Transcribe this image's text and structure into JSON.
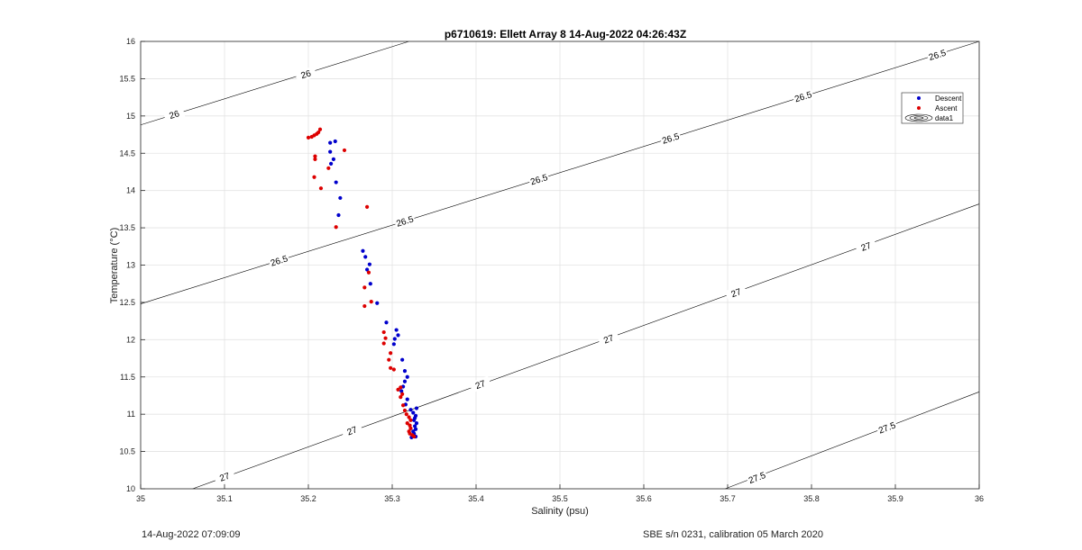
{
  "chart_data": {
    "type": "scatter",
    "title": "p6710619: Ellett Array 8 14-Aug-2022 04:26:43Z",
    "xlabel": "Salinity (psu)",
    "ylabel": "Temperature (°C)",
    "xlim": [
      35,
      36
    ],
    "ylim": [
      10,
      16
    ],
    "xticks": [
      "35",
      "35.1",
      "35.2",
      "35.3",
      "35.4",
      "35.5",
      "35.6",
      "35.7",
      "35.8",
      "35.9",
      "36"
    ],
    "yticks": [
      "10",
      "10.5",
      "11",
      "11.5",
      "12",
      "12.5",
      "13",
      "13.5",
      "14",
      "14.5",
      "15",
      "15.5",
      "16"
    ],
    "grid": true,
    "legend_position": "top-right",
    "legend": [
      "Descent",
      "Ascent",
      "data1"
    ],
    "colors": {
      "descent": "#0000cc",
      "ascent": "#dd0000",
      "contour": "#000000",
      "grid": "#e3e3e3"
    },
    "series": [
      {
        "name": "Descent",
        "points": [
          [
            35.226,
            14.64
          ],
          [
            35.232,
            14.66
          ],
          [
            35.226,
            14.52
          ],
          [
            35.23,
            14.42
          ],
          [
            35.227,
            14.36
          ],
          [
            35.233,
            14.11
          ],
          [
            35.238,
            13.9
          ],
          [
            35.236,
            13.67
          ],
          [
            35.265,
            13.19
          ],
          [
            35.268,
            13.11
          ],
          [
            35.273,
            13.01
          ],
          [
            35.27,
            12.94
          ],
          [
            35.274,
            12.75
          ],
          [
            35.282,
            12.49
          ],
          [
            35.293,
            12.23
          ],
          [
            35.305,
            12.13
          ],
          [
            35.307,
            12.06
          ],
          [
            35.303,
            12.01
          ],
          [
            35.302,
            11.94
          ],
          [
            35.312,
            11.73
          ],
          [
            35.315,
            11.58
          ],
          [
            35.318,
            11.5
          ],
          [
            35.315,
            11.44
          ],
          [
            35.313,
            11.37
          ],
          [
            35.311,
            11.31
          ],
          [
            35.318,
            11.2
          ],
          [
            35.316,
            11.13
          ],
          [
            35.322,
            11.06
          ],
          [
            35.329,
            11.08
          ],
          [
            35.325,
            11.02
          ],
          [
            35.328,
            10.98
          ],
          [
            35.326,
            10.92
          ],
          [
            35.329,
            10.88
          ],
          [
            35.327,
            10.84
          ],
          [
            35.328,
            10.8
          ],
          [
            35.326,
            10.74
          ],
          [
            35.328,
            10.7
          ],
          [
            35.323,
            10.69
          ],
          [
            35.325,
            10.77
          ],
          [
            35.327,
            10.95
          ]
        ]
      },
      {
        "name": "Ascent",
        "points": [
          [
            35.214,
            14.82
          ],
          [
            35.212,
            14.78
          ],
          [
            35.21,
            14.76
          ],
          [
            35.207,
            14.74
          ],
          [
            35.204,
            14.72
          ],
          [
            35.2,
            14.71
          ],
          [
            35.243,
            14.54
          ],
          [
            35.208,
            14.46
          ],
          [
            35.208,
            14.42
          ],
          [
            35.224,
            14.3
          ],
          [
            35.207,
            14.18
          ],
          [
            35.215,
            14.03
          ],
          [
            35.27,
            13.78
          ],
          [
            35.233,
            13.51
          ],
          [
            35.272,
            12.9
          ],
          [
            35.267,
            12.7
          ],
          [
            35.275,
            12.51
          ],
          [
            35.267,
            12.45
          ],
          [
            35.29,
            12.1
          ],
          [
            35.292,
            12.02
          ],
          [
            35.29,
            11.95
          ],
          [
            35.298,
            11.82
          ],
          [
            35.296,
            11.73
          ],
          [
            35.298,
            11.62
          ],
          [
            35.302,
            11.6
          ],
          [
            35.31,
            11.36
          ],
          [
            35.307,
            11.33
          ],
          [
            35.312,
            11.27
          ],
          [
            35.31,
            11.23
          ],
          [
            35.313,
            11.12
          ],
          [
            35.315,
            11.05
          ],
          [
            35.317,
            11.0
          ],
          [
            35.32,
            10.96
          ],
          [
            35.322,
            10.92
          ],
          [
            35.318,
            10.88
          ],
          [
            35.321,
            10.85
          ],
          [
            35.322,
            10.81
          ],
          [
            35.32,
            10.77
          ],
          [
            35.321,
            10.74
          ],
          [
            35.324,
            10.72
          ],
          [
            35.326,
            10.7
          ]
        ]
      }
    ],
    "contours": [
      {
        "level": "26",
        "from": [
          35.0,
          14.88
        ],
        "to": [
          35.32,
          16.0
        ],
        "labels": [
          [
            35.04,
            15.02
          ],
          [
            35.197,
            15.56
          ]
        ]
      },
      {
        "level": "26.5",
        "from": [
          35.0,
          12.48
        ],
        "to": [
          36.0,
          16.0
        ],
        "labels": [
          [
            35.165,
            13.06
          ],
          [
            35.315,
            13.59
          ],
          [
            35.475,
            14.15
          ],
          [
            35.632,
            14.7
          ],
          [
            35.79,
            15.26
          ],
          [
            35.95,
            15.82
          ]
        ]
      },
      {
        "level": "27",
        "from": [
          35.062,
          10.0
        ],
        "to": [
          36.0,
          13.82
        ],
        "labels": [
          [
            35.1,
            10.16
          ],
          [
            35.252,
            10.78
          ],
          [
            35.405,
            11.4
          ],
          [
            35.558,
            12.01
          ],
          [
            35.71,
            12.63
          ],
          [
            35.865,
            13.25
          ]
        ]
      },
      {
        "level": "27.5",
        "from": [
          35.697,
          10.0
        ],
        "to": [
          36.0,
          11.3
        ],
        "labels": [
          [
            35.735,
            10.15
          ],
          [
            35.89,
            10.82
          ]
        ]
      }
    ]
  },
  "footer": {
    "left": "14-Aug-2022 07:09:09",
    "right": "SBE s/n 0231, calibration 05 March 2020"
  }
}
